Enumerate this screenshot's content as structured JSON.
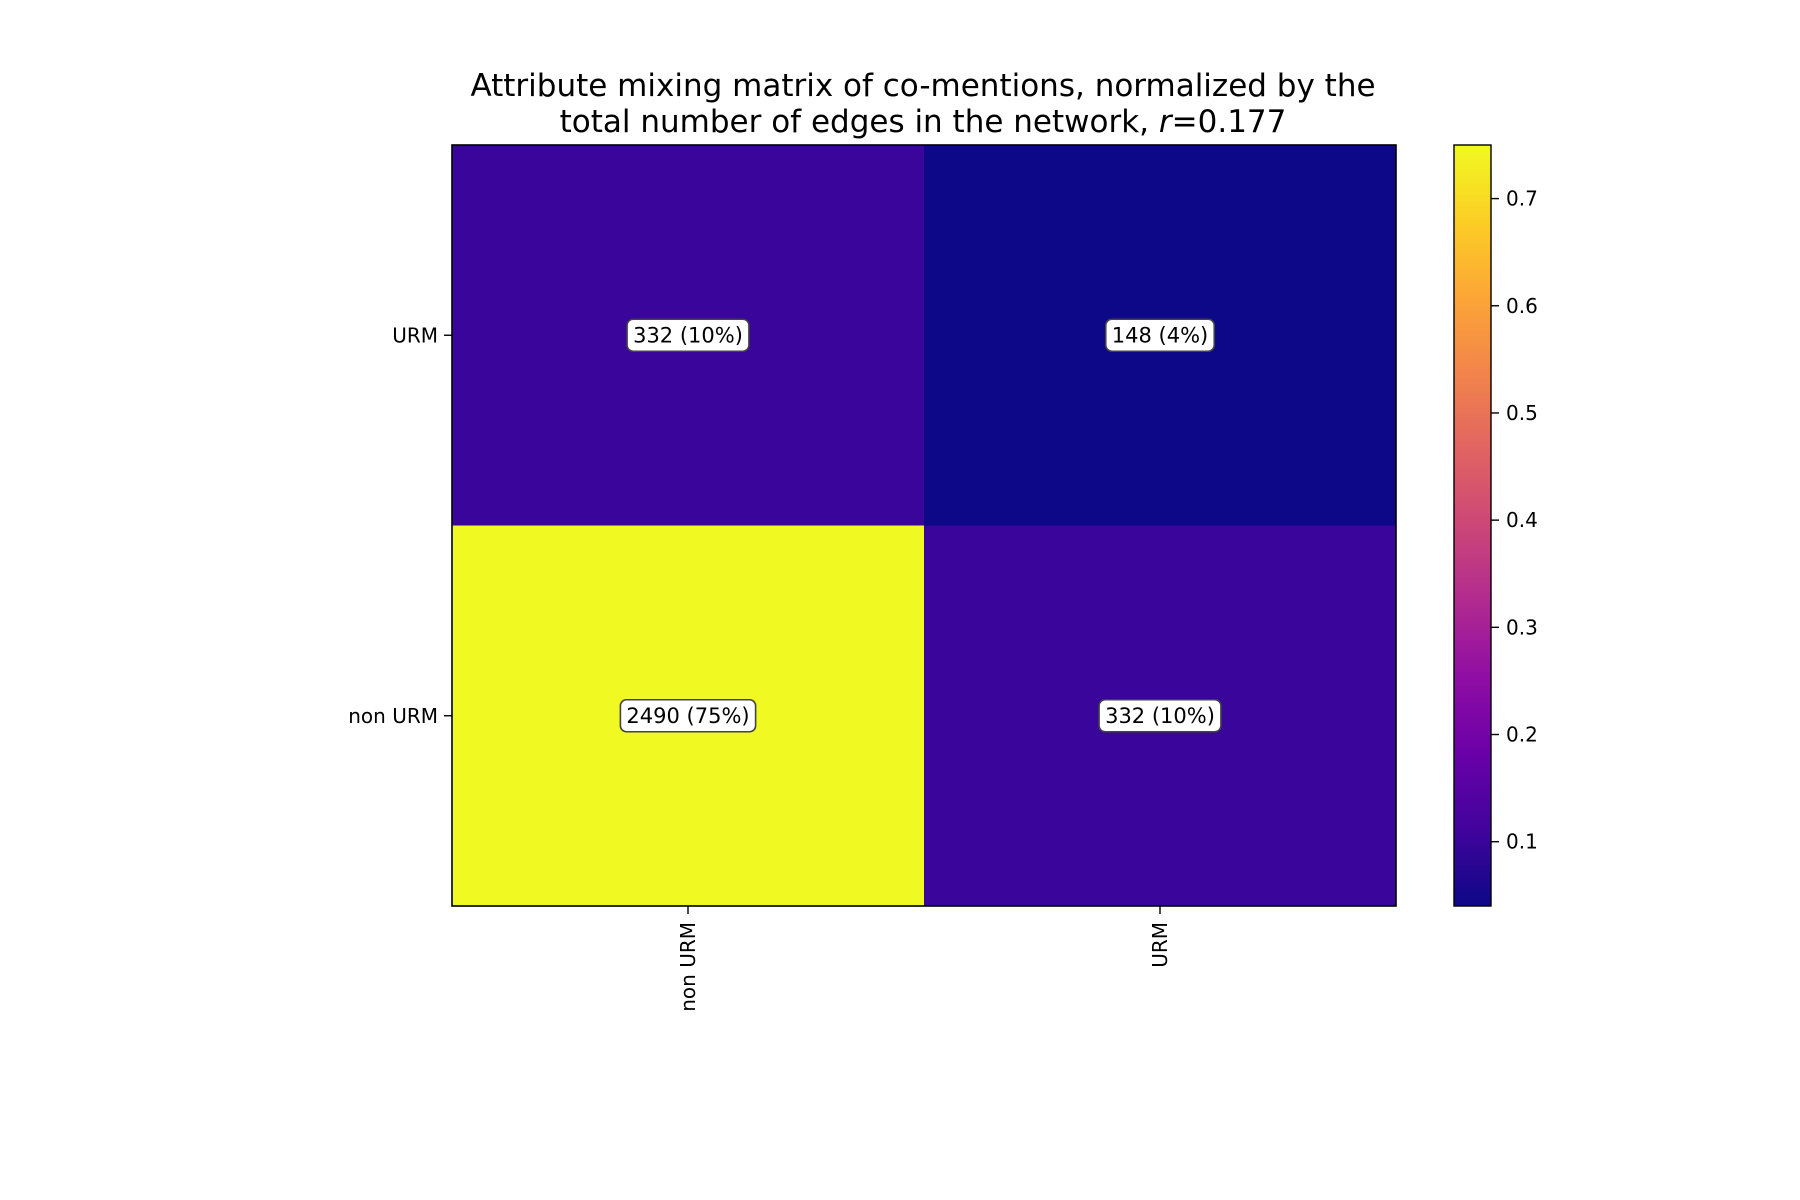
{
  "chart_data": {
    "type": "heatmap",
    "title_line1": "Attribute mixing matrix of co-mentions, normalized by the",
    "title_line2_prefix": "total number of edges in the network, ",
    "title_line2_symbol": "r",
    "title_line2_suffix": "=0.177",
    "x_categories": [
      "non URM",
      "URM"
    ],
    "y_categories": [
      "URM",
      "non URM"
    ],
    "cells": [
      {
        "row": "URM",
        "col": "non URM",
        "value": 0.1,
        "count": 332,
        "label": "332 (10%)"
      },
      {
        "row": "URM",
        "col": "URM",
        "value": 0.04,
        "count": 148,
        "label": "148 (4%)"
      },
      {
        "row": "non URM",
        "col": "non URM",
        "value": 0.75,
        "count": 2490,
        "label": "2490 (75%)"
      },
      {
        "row": "non URM",
        "col": "URM",
        "value": 0.1,
        "count": 332,
        "label": "332 (10%)"
      }
    ],
    "colorbar": {
      "colormap": "plasma",
      "range": [
        0.04,
        0.75
      ],
      "ticks": [
        0.1,
        0.2,
        0.3,
        0.4,
        0.5,
        0.6,
        0.7
      ],
      "tick_labels": [
        "0.1",
        "0.2",
        "0.3",
        "0.4",
        "0.5",
        "0.6",
        "0.7"
      ]
    },
    "xlabel": "",
    "ylabel": "",
    "grid": false
  },
  "colors": {
    "plasma": [
      "#0d0887",
      "#41049d",
      "#6a00a8",
      "#8f0da4",
      "#b12a90",
      "#cc4778",
      "#e16462",
      "#f2844b",
      "#fca636",
      "#fcce25",
      "#f0f921"
    ],
    "label_box_fill": "#ffffff",
    "label_box_edge": "#444444"
  }
}
